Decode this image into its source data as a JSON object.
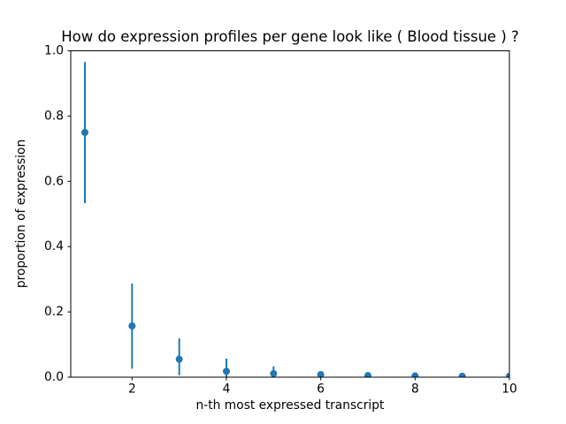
{
  "figure": {
    "background": "#ffffff",
    "spine_color": "#000000"
  },
  "chart_data": {
    "type": "scatter",
    "subtype": "errorbar",
    "title": "How do expression profiles per gene look like ( Blood tissue ) ?",
    "xlabel": "n-th most expressed transcript",
    "ylabel": "proportion of expression",
    "series_color": "#1f77b4",
    "marker": "circle",
    "x": [
      1,
      2,
      3,
      4,
      5,
      6,
      7,
      8,
      9,
      10
    ],
    "y": [
      0.75,
      0.157,
      0.055,
      0.018,
      0.011,
      0.008,
      0.005,
      0.004,
      0.003,
      0.003
    ],
    "err_lo": [
      0.533,
      0.026,
      0.006,
      0.0,
      0.0,
      0.0,
      0.0,
      0.0,
      0.0,
      0.0
    ],
    "err_hi": [
      0.966,
      0.287,
      0.119,
      0.057,
      0.033,
      0.015,
      0.01,
      0.007,
      0.005,
      0.004
    ],
    "xlim": [
      0.7,
      10.0
    ],
    "ylim": [
      0.0,
      1.0
    ],
    "xticks": [
      2,
      4,
      6,
      8,
      10
    ],
    "xtick_labels": [
      "2",
      "4",
      "6",
      "8",
      "10"
    ],
    "yticks": [
      0.0,
      0.2,
      0.4,
      0.6,
      0.8,
      1.0
    ],
    "ytick_labels": [
      "0.0",
      "0.2",
      "0.4",
      "0.6",
      "0.8",
      "1.0"
    ],
    "grid": false,
    "legend": null
  }
}
